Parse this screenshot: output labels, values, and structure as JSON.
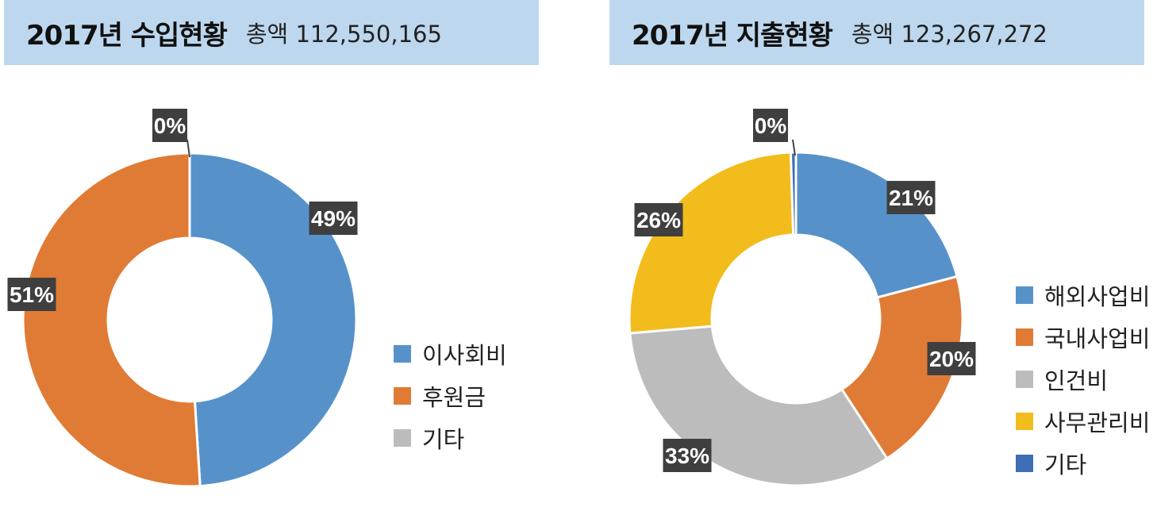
{
  "chart_data": [
    {
      "type": "pie",
      "title": "2017년 수입현황",
      "subtitle": "총액 112,550,165",
      "categories": [
        "이사회비",
        "후원금",
        "기타"
      ],
      "values": [
        49,
        51,
        0
      ],
      "data_labels": [
        "49%",
        "51%",
        "0%"
      ],
      "colors": [
        "#5692c9",
        "#e07b35",
        "#bcbcbc"
      ],
      "legend_position": "right"
    },
    {
      "type": "pie",
      "title": "2017년 지출현황",
      "subtitle": "총액 123,267,272",
      "categories": [
        "해외사업비",
        "국내사업비",
        "인건비",
        "사무관리비",
        "기타"
      ],
      "values": [
        21,
        20,
        33,
        26,
        0.5
      ],
      "data_labels": [
        "21%",
        "20%",
        "33%",
        "26%",
        "0%"
      ],
      "colors": [
        "#5692c9",
        "#e07b35",
        "#bcbcbc",
        "#f2bc1d",
        "#3e6eb5"
      ],
      "legend_position": "right"
    }
  ]
}
